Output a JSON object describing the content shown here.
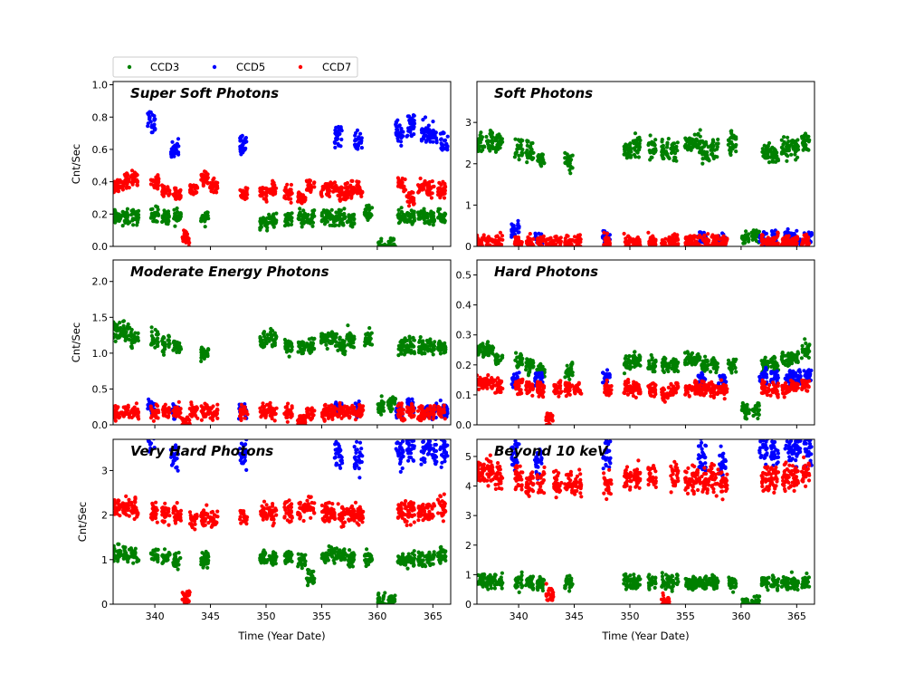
{
  "legend": {
    "placement": "top-left-outside",
    "entries": [
      "CCD3",
      "CCD5",
      "CCD7"
    ]
  },
  "colors": {
    "CCD3": "#008000",
    "CCD5": "#0000ff",
    "CCD7": "#ff0000"
  },
  "chart_data": [
    {
      "type": "scatter",
      "title": "Super Soft Photons",
      "ylabel": "Cnt/Sec",
      "xlabel": "",
      "xlim": [
        336.25,
        366.6
      ],
      "ylim": [
        0,
        1.02
      ],
      "yticks": [
        "0.0",
        "0.2",
        "0.4",
        "0.6",
        "0.8",
        "1.0"
      ],
      "ytick_values": [
        0,
        0.2,
        0.4,
        0.6,
        0.8,
        1.0
      ],
      "series": [
        {
          "name": "CCD3",
          "x": [
            336.6,
            337.4,
            338.2,
            340.0,
            341.0,
            342.0,
            344.5,
            349.8,
            350.6,
            352.0,
            353.2,
            354.0,
            355.3,
            356.0,
            356.8,
            357.6,
            359.2,
            360.4,
            361.3,
            362.2,
            363.0,
            364.0,
            364.8,
            365.8
          ],
          "y": [
            0.18,
            0.18,
            0.18,
            0.2,
            0.18,
            0.18,
            0.18,
            0.15,
            0.16,
            0.17,
            0.18,
            0.18,
            0.18,
            0.18,
            0.18,
            0.17,
            0.2,
            0.0,
            0.0,
            0.18,
            0.18,
            0.18,
            0.17,
            0.18
          ]
        },
        {
          "name": "CCD5",
          "x": [
            339.7,
            341.8,
            347.9,
            356.5,
            358.3,
            362.0,
            363.0,
            364.3,
            365.0,
            366.0
          ],
          "y": [
            0.75,
            0.6,
            0.63,
            0.68,
            0.65,
            0.7,
            0.75,
            0.7,
            0.68,
            0.65
          ]
        },
        {
          "name": "CCD7",
          "x": [
            336.6,
            337.4,
            338.2,
            340.0,
            341.0,
            342.0,
            342.8,
            343.5,
            344.5,
            345.3,
            348.0,
            349.8,
            350.6,
            352.0,
            353.2,
            354.0,
            355.3,
            356.0,
            356.8,
            357.6,
            358.4,
            362.2,
            363.0,
            364.0,
            364.8,
            365.8
          ],
          "y": [
            0.38,
            0.4,
            0.42,
            0.4,
            0.35,
            0.33,
            0.05,
            0.35,
            0.42,
            0.37,
            0.33,
            0.33,
            0.35,
            0.33,
            0.3,
            0.38,
            0.35,
            0.36,
            0.33,
            0.35,
            0.35,
            0.38,
            0.3,
            0.37,
            0.36,
            0.35
          ]
        }
      ]
    },
    {
      "type": "scatter",
      "title": "Soft Photons",
      "ylabel": "",
      "xlabel": "",
      "xlim": [
        336.25,
        366.6
      ],
      "ylim": [
        0,
        3.99
      ],
      "yticks": [
        "0",
        "1",
        "2",
        "3"
      ],
      "ytick_values": [
        0,
        1,
        2,
        3
      ],
      "series": [
        {
          "name": "CCD3",
          "x": [
            336.6,
            337.4,
            338.2,
            340.0,
            341.0,
            342.0,
            344.5,
            349.8,
            350.6,
            352.0,
            353.2,
            354.0,
            355.3,
            356.0,
            356.8,
            357.6,
            359.2,
            360.4,
            361.3,
            362.2,
            363.0,
            364.0,
            364.8,
            365.8
          ],
          "y": [
            2.5,
            2.6,
            2.5,
            2.4,
            2.3,
            2.1,
            2.0,
            2.3,
            2.4,
            2.4,
            2.3,
            2.3,
            2.5,
            2.5,
            2.3,
            2.4,
            2.5,
            0.2,
            0.25,
            2.3,
            2.2,
            2.4,
            2.4,
            2.5
          ]
        },
        {
          "name": "CCD5",
          "x": [
            339.7,
            341.8,
            347.9,
            356.5,
            358.3,
            362.0,
            363.0,
            364.3,
            365.0,
            366.0
          ],
          "y": [
            0.4,
            0.2,
            0.2,
            0.2,
            0.15,
            0.2,
            0.2,
            0.2,
            0.15,
            0.2
          ]
        },
        {
          "name": "CCD7",
          "x": [
            336.6,
            337.4,
            338.2,
            340.0,
            341.0,
            342.0,
            342.8,
            343.5,
            344.5,
            345.3,
            348.0,
            349.8,
            350.6,
            352.0,
            353.2,
            354.0,
            355.3,
            356.0,
            356.8,
            357.6,
            358.4,
            362.2,
            363.0,
            364.0,
            364.8,
            365.8
          ],
          "y": [
            0.12,
            0.1,
            0.1,
            0.1,
            0.1,
            0.1,
            0.02,
            0.1,
            0.1,
            0.1,
            0.1,
            0.1,
            0.1,
            0.1,
            0.05,
            0.1,
            0.1,
            0.1,
            0.1,
            0.1,
            0.1,
            0.1,
            0.1,
            0.1,
            0.1,
            0.1
          ]
        }
      ]
    },
    {
      "type": "scatter",
      "title": "Moderate Energy Photons",
      "ylabel": "Cnt/Sec",
      "xlabel": "",
      "xlim": [
        336.25,
        366.6
      ],
      "ylim": [
        0,
        2.3
      ],
      "yticks": [
        "0.0",
        "0.5",
        "1.0",
        "1.5",
        "2.0"
      ],
      "ytick_values": [
        0,
        0.5,
        1.0,
        1.5,
        2.0
      ],
      "series": [
        {
          "name": "CCD3",
          "x": [
            336.6,
            337.4,
            338.2,
            340.0,
            341.0,
            342.0,
            344.5,
            349.8,
            350.6,
            352.0,
            353.2,
            354.0,
            355.3,
            356.0,
            356.8,
            357.6,
            359.2,
            360.4,
            361.3,
            362.2,
            363.0,
            364.0,
            364.8,
            365.8
          ],
          "y": [
            1.3,
            1.3,
            1.2,
            1.2,
            1.1,
            1.1,
            1.0,
            1.2,
            1.2,
            1.1,
            1.1,
            1.1,
            1.2,
            1.2,
            1.1,
            1.2,
            1.2,
            0.25,
            0.3,
            1.1,
            1.1,
            1.1,
            1.1,
            1.1
          ]
        },
        {
          "name": "CCD5",
          "x": [
            339.7,
            341.8,
            347.9,
            356.5,
            358.3,
            362.0,
            363.0,
            364.3,
            365.0,
            366.0
          ],
          "y": [
            0.25,
            0.2,
            0.2,
            0.25,
            0.2,
            0.2,
            0.25,
            0.2,
            0.2,
            0.2
          ]
        },
        {
          "name": "CCD7",
          "x": [
            336.6,
            337.4,
            338.2,
            340.0,
            341.0,
            342.0,
            342.8,
            343.5,
            344.5,
            345.3,
            348.0,
            349.8,
            350.6,
            352.0,
            353.2,
            354.0,
            355.3,
            356.0,
            356.8,
            357.6,
            358.4,
            362.2,
            363.0,
            364.0,
            364.8,
            365.8
          ],
          "y": [
            0.18,
            0.18,
            0.18,
            0.18,
            0.18,
            0.18,
            0.02,
            0.18,
            0.18,
            0.18,
            0.16,
            0.18,
            0.18,
            0.18,
            0.05,
            0.16,
            0.17,
            0.18,
            0.18,
            0.18,
            0.18,
            0.18,
            0.18,
            0.17,
            0.18,
            0.18
          ]
        }
      ]
    },
    {
      "type": "scatter",
      "title": "Hard Photons",
      "ylabel": "",
      "xlabel": "",
      "xlim": [
        336.25,
        366.6
      ],
      "ylim": [
        0,
        0.55
      ],
      "yticks": [
        "0.0",
        "0.1",
        "0.2",
        "0.3",
        "0.4",
        "0.5"
      ],
      "ytick_values": [
        0,
        0.1,
        0.2,
        0.3,
        0.4,
        0.5
      ],
      "series": [
        {
          "name": "CCD3",
          "x": [
            336.6,
            337.4,
            338.2,
            340.0,
            341.0,
            342.0,
            344.5,
            349.8,
            350.6,
            352.0,
            353.2,
            354.0,
            355.3,
            356.0,
            356.8,
            357.6,
            359.2,
            360.4,
            361.3,
            362.2,
            363.0,
            364.0,
            364.8,
            365.8
          ],
          "y": [
            0.25,
            0.25,
            0.22,
            0.22,
            0.2,
            0.18,
            0.18,
            0.2,
            0.22,
            0.2,
            0.2,
            0.2,
            0.22,
            0.22,
            0.2,
            0.2,
            0.2,
            0.05,
            0.05,
            0.2,
            0.2,
            0.22,
            0.22,
            0.25
          ]
        },
        {
          "name": "CCD5",
          "x": [
            339.7,
            341.8,
            347.9,
            356.5,
            358.3,
            362.0,
            363.0,
            364.3,
            365.0,
            366.0
          ],
          "y": [
            0.15,
            0.15,
            0.16,
            0.15,
            0.15,
            0.16,
            0.16,
            0.16,
            0.16,
            0.16
          ]
        },
        {
          "name": "CCD7",
          "x": [
            336.6,
            337.4,
            338.2,
            340.0,
            341.0,
            342.0,
            342.8,
            343.5,
            344.5,
            345.3,
            348.0,
            349.8,
            350.6,
            352.0,
            353.2,
            354.0,
            355.3,
            356.0,
            356.8,
            357.6,
            358.4,
            362.2,
            363.0,
            364.0,
            364.8,
            365.8
          ],
          "y": [
            0.14,
            0.14,
            0.13,
            0.13,
            0.12,
            0.12,
            0.02,
            0.12,
            0.12,
            0.12,
            0.12,
            0.12,
            0.12,
            0.12,
            0.1,
            0.12,
            0.12,
            0.12,
            0.12,
            0.12,
            0.12,
            0.12,
            0.12,
            0.12,
            0.13,
            0.13
          ]
        }
      ]
    },
    {
      "type": "scatter",
      "title": "Very Hard Photons",
      "ylabel": "Cnt/Sec",
      "xlabel": "Time (Year Date)",
      "xlim": [
        336.25,
        366.6
      ],
      "ylim": [
        0,
        3.7
      ],
      "yticks": [
        "0",
        "1",
        "2",
        "3"
      ],
      "ytick_values": [
        0,
        1,
        2,
        3
      ],
      "series": [
        {
          "name": "CCD3",
          "x": [
            336.6,
            337.4,
            338.2,
            340.0,
            341.0,
            342.0,
            344.5,
            349.8,
            350.6,
            352.0,
            353.2,
            354.0,
            355.3,
            356.0,
            356.8,
            357.6,
            359.2,
            360.4,
            361.3,
            362.2,
            363.0,
            364.0,
            364.8,
            365.8
          ],
          "y": [
            1.15,
            1.1,
            1.1,
            1.1,
            1.05,
            1.0,
            1.0,
            1.05,
            1.05,
            1.05,
            1.0,
            0.6,
            1.05,
            1.1,
            1.1,
            1.0,
            1.05,
            0.05,
            0.05,
            1.0,
            1.0,
            1.0,
            1.05,
            1.1
          ]
        },
        {
          "name": "CCD5",
          "x": [
            339.7,
            341.8,
            347.9,
            356.5,
            358.3,
            362.0,
            363.0,
            364.3,
            365.0,
            366.0
          ],
          "y": [
            3.7,
            3.3,
            3.4,
            3.35,
            3.3,
            3.4,
            3.45,
            3.5,
            3.5,
            3.4
          ]
        },
        {
          "name": "CCD7",
          "x": [
            336.6,
            337.4,
            338.2,
            340.0,
            341.0,
            342.0,
            342.8,
            343.5,
            344.5,
            345.3,
            348.0,
            349.8,
            350.6,
            352.0,
            353.2,
            354.0,
            355.3,
            356.0,
            356.8,
            357.6,
            358.4,
            362.2,
            363.0,
            364.0,
            364.8,
            365.8
          ],
          "y": [
            2.15,
            2.2,
            2.2,
            2.05,
            2.0,
            2.0,
            0.15,
            1.9,
            1.95,
            1.9,
            1.95,
            2.05,
            2.05,
            2.1,
            2.1,
            2.2,
            2.05,
            2.0,
            2.0,
            2.05,
            2.0,
            2.1,
            2.05,
            2.05,
            2.05,
            2.2
          ]
        }
      ]
    },
    {
      "type": "scatter",
      "title": "Beyond 10 keV",
      "ylabel": "",
      "xlabel": "Time (Year Date)",
      "xlim": [
        336.25,
        366.6
      ],
      "ylim": [
        0,
        5.58
      ],
      "yticks": [
        "0",
        "1",
        "2",
        "3",
        "4",
        "5"
      ],
      "ytick_values": [
        0,
        1,
        2,
        3,
        4,
        5
      ],
      "series": [
        {
          "name": "CCD3",
          "x": [
            336.6,
            337.4,
            338.2,
            340.0,
            341.0,
            342.0,
            344.5,
            349.8,
            350.6,
            352.0,
            353.2,
            354.0,
            355.3,
            356.0,
            356.8,
            357.6,
            359.2,
            360.4,
            361.3,
            362.2,
            363.0,
            364.0,
            364.8,
            365.8
          ],
          "y": [
            0.8,
            0.78,
            0.75,
            0.75,
            0.72,
            0.7,
            0.7,
            0.75,
            0.75,
            0.75,
            0.75,
            0.7,
            0.72,
            0.75,
            0.75,
            0.72,
            0.72,
            0.05,
            0.05,
            0.75,
            0.72,
            0.72,
            0.72,
            0.75
          ]
        },
        {
          "name": "CCD5",
          "x": [
            339.7,
            341.8,
            347.9,
            356.5,
            358.3,
            362.0,
            363.0,
            364.3,
            365.0,
            366.0
          ],
          "y": [
            5.1,
            4.8,
            5.2,
            5.0,
            4.8,
            5.3,
            5.2,
            5.4,
            5.3,
            5.3
          ]
        },
        {
          "name": "CCD7",
          "x": [
            336.6,
            337.4,
            338.2,
            340.0,
            341.0,
            342.0,
            342.8,
            343.5,
            344.5,
            345.3,
            348.0,
            349.8,
            350.6,
            352.0,
            353.2,
            354.0,
            355.3,
            356.0,
            356.8,
            357.6,
            358.4,
            362.2,
            363.0,
            364.0,
            364.8,
            365.8
          ],
          "y": [
            4.5,
            4.45,
            4.35,
            4.2,
            4.2,
            4.2,
            0.35,
            4.15,
            4.1,
            4.05,
            4.1,
            4.2,
            4.25,
            4.3,
            0.05,
            4.3,
            4.25,
            4.15,
            4.1,
            4.2,
            4.15,
            4.3,
            4.3,
            4.3,
            4.3,
            4.4
          ]
        }
      ]
    }
  ],
  "xticks": [
    "340",
    "345",
    "350",
    "355",
    "360",
    "365"
  ],
  "xtick_values": [
    340,
    345,
    350,
    355,
    360,
    365
  ]
}
